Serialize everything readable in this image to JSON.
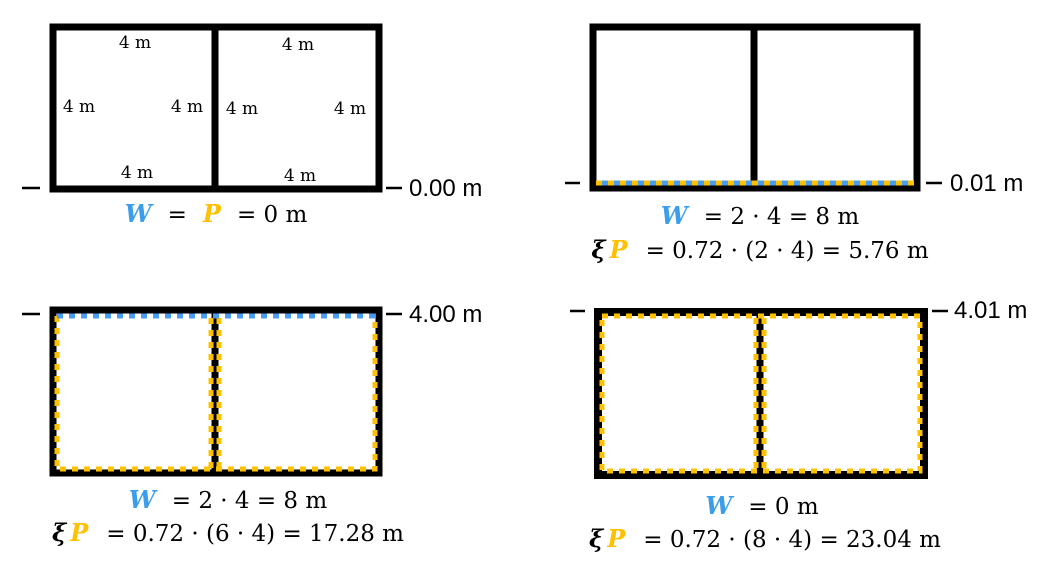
{
  "colors": {
    "wall": "#000000",
    "wetted_perimeter": "#ffc000",
    "water_surface": "#4a9cf0",
    "W_symbol": "#3c9eea",
    "P_symbol": "#ffc000"
  },
  "panels": [
    {
      "id": "depth-0",
      "dimensions": {
        "top_left": "4 m",
        "top_right": "4 m",
        "left_outer": "4 m",
        "left_inner": "4 m",
        "right_inner": "4 m",
        "right_outer": "4 m",
        "bottom_left": "4 m",
        "bottom_right": "4 m"
      },
      "level_label": "0.00 m",
      "equation_1": {
        "W": "W",
        "eq1": "=",
        "P": "P",
        "rest": "=  0 m"
      }
    },
    {
      "id": "depth-0-01",
      "level_label": "0.01 m",
      "equation_1": {
        "W": "W",
        "rest": "=  2 · 4 = 8 m"
      },
      "equation_2": {
        "xi": "ξ",
        "P": "P",
        "rest": "=  0.72 · (2 · 4) = 5.76 m"
      }
    },
    {
      "id": "depth-4",
      "level_label": "4.00 m",
      "equation_1": {
        "W": "W",
        "rest": "= 2 · 4 = 8 m"
      },
      "equation_2": {
        "xi": "ξ",
        "P": "P",
        "rest": "= 0.72 · (6 · 4) = 17.28 m"
      }
    },
    {
      "id": "depth-4-01",
      "level_label": "4.01 m",
      "equation_1": {
        "W": "W",
        "rest": "= 0 m"
      },
      "equation_2": {
        "xi": "ξ",
        "P": "P",
        "rest": "= 0.72 · (8 · 4) = 23.04 m"
      }
    }
  ]
}
